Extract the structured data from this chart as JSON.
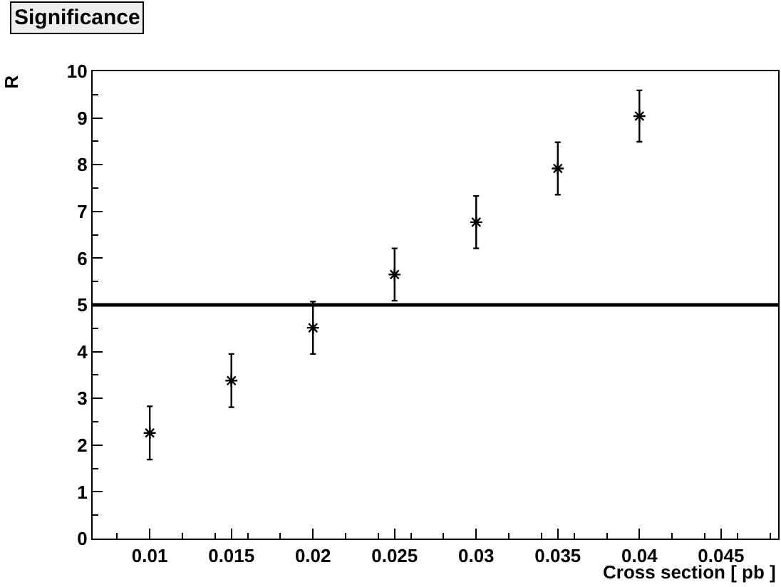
{
  "chart_data": {
    "type": "scatter",
    "title": "Significance",
    "xlabel": "Cross section [ pb ]",
    "ylabel": "R",
    "x": [
      0.01,
      0.015,
      0.02,
      0.025,
      0.03,
      0.035,
      0.04
    ],
    "series": [
      {
        "color": "#000000",
        "values": [
          2.26,
          3.38,
          4.51,
          5.65,
          6.77,
          7.92,
          9.04
        ],
        "errors": [
          0.57,
          0.57,
          0.56,
          0.56,
          0.56,
          0.56,
          0.55
        ]
      }
    ],
    "marker": "cross",
    "xlim": [
      0.0065,
      0.0485
    ],
    "xticks": [
      0.01,
      0.015,
      0.02,
      0.025,
      0.03,
      0.035,
      0.04,
      0.045
    ],
    "ylim": [
      0,
      10
    ],
    "yticks": [
      0,
      1,
      2,
      3,
      4,
      5,
      6,
      7,
      8,
      9,
      10
    ],
    "ref_lines": [
      {
        "axis": "y",
        "value": 5,
        "color": "#000000",
        "line_style": "solid"
      }
    ]
  }
}
